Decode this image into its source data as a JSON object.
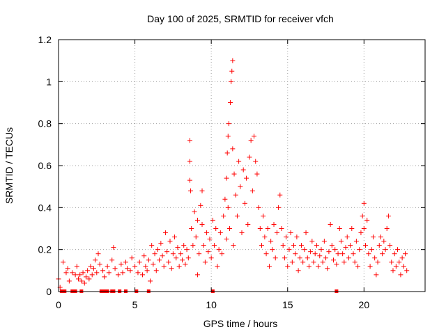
{
  "chart_data": {
    "type": "scatter",
    "title": "Day 100 of 2025, SRMTID for receiver vfch",
    "xlabel": "GPS time / hours",
    "ylabel": "SRMTID / TECUs",
    "xlim": [
      0,
      24
    ],
    "ylim": [
      0,
      1.2
    ],
    "xticks": [
      0,
      5,
      10,
      15,
      20
    ],
    "xtick_labels": [
      "0",
      "5",
      "10",
      "15",
      "20"
    ],
    "yticks": [
      0,
      0.2,
      0.4,
      0.6,
      0.8,
      1.0,
      1.2
    ],
    "ytick_labels": [
      "0",
      "0.2",
      "0.4",
      "0.6",
      "0.8",
      "1",
      "1.2"
    ],
    "grid": true,
    "marker": "+",
    "color": "#ff0000",
    "series": [
      {
        "name": "SRMTID",
        "points": [
          [
            0.0,
            0.06
          ],
          [
            0.1,
            0.02
          ],
          [
            0.3,
            0.14
          ],
          [
            0.5,
            0.09
          ],
          [
            0.6,
            0.11
          ],
          [
            0.7,
            0.05
          ],
          [
            0.9,
            0.09
          ],
          [
            1.1,
            0.08
          ],
          [
            1.2,
            0.12
          ],
          [
            1.3,
            0.06
          ],
          [
            1.4,
            0.08
          ],
          [
            1.5,
            0.05
          ],
          [
            1.6,
            0.09
          ],
          [
            1.7,
            0.04
          ],
          [
            1.8,
            0.07
          ],
          [
            1.9,
            0.1
          ],
          [
            2.0,
            0.06
          ],
          [
            2.1,
            0.12
          ],
          [
            2.2,
            0.08
          ],
          [
            2.3,
            0.11
          ],
          [
            2.4,
            0.15
          ],
          [
            2.5,
            0.09
          ],
          [
            2.6,
            0.18
          ],
          [
            2.7,
            0.13
          ],
          [
            2.9,
            0.1
          ],
          [
            3.0,
            0.07
          ],
          [
            3.2,
            0.12
          ],
          [
            3.3,
            0.09
          ],
          [
            3.5,
            0.15
          ],
          [
            3.6,
            0.21
          ],
          [
            3.7,
            0.11
          ],
          [
            3.9,
            0.08
          ],
          [
            4.1,
            0.13
          ],
          [
            4.2,
            0.09
          ],
          [
            4.4,
            0.14
          ],
          [
            4.5,
            0.11
          ],
          [
            4.7,
            0.1
          ],
          [
            4.8,
            0.16
          ],
          [
            5.0,
            0.12
          ],
          [
            5.2,
            0.09
          ],
          [
            5.3,
            0.14
          ],
          [
            5.5,
            0.08
          ],
          [
            5.6,
            0.17
          ],
          [
            5.7,
            0.12
          ],
          [
            5.8,
            0.1
          ],
          [
            5.9,
            0.15
          ],
          [
            6.0,
            0.05
          ],
          [
            6.1,
            0.22
          ],
          [
            6.2,
            0.13
          ],
          [
            6.3,
            0.18
          ],
          [
            6.4,
            0.1
          ],
          [
            6.5,
            0.2
          ],
          [
            6.6,
            0.15
          ],
          [
            6.7,
            0.23
          ],
          [
            6.8,
            0.17
          ],
          [
            6.9,
            0.12
          ],
          [
            7.0,
            0.28
          ],
          [
            7.1,
            0.19
          ],
          [
            7.2,
            0.14
          ],
          [
            7.3,
            0.24
          ],
          [
            7.4,
            0.11
          ],
          [
            7.5,
            0.18
          ],
          [
            7.6,
            0.26
          ],
          [
            7.7,
            0.16
          ],
          [
            7.8,
            0.21
          ],
          [
            7.9,
            0.12
          ],
          [
            8.0,
            0.18
          ],
          [
            8.1,
            0.15
          ],
          [
            8.2,
            0.22
          ],
          [
            8.3,
            0.13
          ],
          [
            8.4,
            0.2
          ],
          [
            8.5,
            0.16
          ],
          [
            8.6,
            0.72
          ],
          [
            8.6,
            0.62
          ],
          [
            8.6,
            0.53
          ],
          [
            8.65,
            0.48
          ],
          [
            8.7,
            0.3
          ],
          [
            8.8,
            0.22
          ],
          [
            8.9,
            0.38
          ],
          [
            9.0,
            0.26
          ],
          [
            9.1,
            0.34
          ],
          [
            9.1,
            0.08
          ],
          [
            9.2,
            0.18
          ],
          [
            9.3,
            0.41
          ],
          [
            9.4,
            0.48
          ],
          [
            9.4,
            0.32
          ],
          [
            9.5,
            0.22
          ],
          [
            9.6,
            0.14
          ],
          [
            9.7,
            0.28
          ],
          [
            9.8,
            0.19
          ],
          [
            9.9,
            0.25
          ],
          [
            10.0,
            0.16
          ],
          [
            10.1,
            0.34
          ],
          [
            10.2,
            0.22
          ],
          [
            10.3,
            0.3
          ],
          [
            10.4,
            0.12
          ],
          [
            10.5,
            0.2
          ],
          [
            10.6,
            0.28
          ],
          [
            10.7,
            0.18
          ],
          [
            10.8,
            0.36
          ],
          [
            10.9,
            0.44
          ],
          [
            11.0,
            0.54
          ],
          [
            11.0,
            0.25
          ],
          [
            11.05,
            0.66
          ],
          [
            11.1,
            0.74
          ],
          [
            11.1,
            0.4
          ],
          [
            11.15,
            0.8
          ],
          [
            11.2,
            0.3
          ],
          [
            11.25,
            0.9
          ],
          [
            11.3,
            1.0
          ],
          [
            11.35,
            1.05
          ],
          [
            11.4,
            1.1
          ],
          [
            11.4,
            0.68
          ],
          [
            11.45,
            0.22
          ],
          [
            11.5,
            0.56
          ],
          [
            11.6,
            0.46
          ],
          [
            11.7,
            0.36
          ],
          [
            11.8,
            0.62
          ],
          [
            11.9,
            0.5
          ],
          [
            12.0,
            0.28
          ],
          [
            12.1,
            0.58
          ],
          [
            12.2,
            0.42
          ],
          [
            12.3,
            0.54
          ],
          [
            12.4,
            0.32
          ],
          [
            12.5,
            0.64
          ],
          [
            12.6,
            0.72
          ],
          [
            12.7,
            0.48
          ],
          [
            12.8,
            0.74
          ],
          [
            12.9,
            0.62
          ],
          [
            13.0,
            0.56
          ],
          [
            13.1,
            0.4
          ],
          [
            13.2,
            0.3
          ],
          [
            13.3,
            0.22
          ],
          [
            13.4,
            0.36
          ],
          [
            13.5,
            0.26
          ],
          [
            13.6,
            0.18
          ],
          [
            13.7,
            0.3
          ],
          [
            13.8,
            0.12
          ],
          [
            13.9,
            0.24
          ],
          [
            14.0,
            0.2
          ],
          [
            14.1,
            0.32
          ],
          [
            14.2,
            0.16
          ],
          [
            14.3,
            0.28
          ],
          [
            14.4,
            0.4
          ],
          [
            14.5,
            0.46
          ],
          [
            14.6,
            0.3
          ],
          [
            14.7,
            0.22
          ],
          [
            14.8,
            0.16
          ],
          [
            14.9,
            0.26
          ],
          [
            15.0,
            0.12
          ],
          [
            15.1,
            0.2
          ],
          [
            15.2,
            0.28
          ],
          [
            15.3,
            0.14
          ],
          [
            15.4,
            0.22
          ],
          [
            15.5,
            0.18
          ],
          [
            15.6,
            0.26
          ],
          [
            15.7,
            0.1
          ],
          [
            15.8,
            0.16
          ],
          [
            15.9,
            0.22
          ],
          [
            16.0,
            0.14
          ],
          [
            16.1,
            0.2
          ],
          [
            16.2,
            0.28
          ],
          [
            16.3,
            0.16
          ],
          [
            16.4,
            0.12
          ],
          [
            16.5,
            0.19
          ],
          [
            16.6,
            0.24
          ],
          [
            16.7,
            0.14
          ],
          [
            16.8,
            0.18
          ],
          [
            16.9,
            0.22
          ],
          [
            17.0,
            0.12
          ],
          [
            17.1,
            0.17
          ],
          [
            17.2,
            0.2
          ],
          [
            17.3,
            0.14
          ],
          [
            17.4,
            0.24
          ],
          [
            17.5,
            0.16
          ],
          [
            17.6,
            0.11
          ],
          [
            17.7,
            0.19
          ],
          [
            17.8,
            0.32
          ],
          [
            17.9,
            0.22
          ],
          [
            18.0,
            0.15
          ],
          [
            18.1,
            0.2
          ],
          [
            18.2,
            0.13
          ],
          [
            18.3,
            0.18
          ],
          [
            18.4,
            0.3
          ],
          [
            18.5,
            0.24
          ],
          [
            18.6,
            0.18
          ],
          [
            18.7,
            0.14
          ],
          [
            18.8,
            0.21
          ],
          [
            18.9,
            0.26
          ],
          [
            19.0,
            0.16
          ],
          [
            19.1,
            0.22
          ],
          [
            19.2,
            0.3
          ],
          [
            19.3,
            0.18
          ],
          [
            19.4,
            0.14
          ],
          [
            19.5,
            0.24
          ],
          [
            19.6,
            0.12
          ],
          [
            19.7,
            0.2
          ],
          [
            19.8,
            0.28
          ],
          [
            19.9,
            0.36
          ],
          [
            20.0,
            0.42
          ],
          [
            20.0,
            0.3
          ],
          [
            20.1,
            0.22
          ],
          [
            20.2,
            0.34
          ],
          [
            20.3,
            0.18
          ],
          [
            20.4,
            0.12
          ],
          [
            20.5,
            0.2
          ],
          [
            20.6,
            0.26
          ],
          [
            20.7,
            0.16
          ],
          [
            20.8,
            0.08
          ],
          [
            20.9,
            0.14
          ],
          [
            21.0,
            0.22
          ],
          [
            21.1,
            0.26
          ],
          [
            21.2,
            0.18
          ],
          [
            21.3,
            0.24
          ],
          [
            21.4,
            0.2
          ],
          [
            21.5,
            0.3
          ],
          [
            21.6,
            0.36
          ],
          [
            21.7,
            0.22
          ],
          [
            21.8,
            0.14
          ],
          [
            21.9,
            0.1
          ],
          [
            22.0,
            0.18
          ],
          [
            22.1,
            0.12
          ],
          [
            22.2,
            0.2
          ],
          [
            22.3,
            0.14
          ],
          [
            22.4,
            0.08
          ],
          [
            22.5,
            0.16
          ],
          [
            22.6,
            0.12
          ],
          [
            22.7,
            0.18
          ],
          [
            22.8,
            0.1
          ]
        ]
      }
    ],
    "zero_markers_x": [
      0.2,
      0.4,
      0.9,
      1.1,
      1.5,
      2.8,
      3.0,
      3.2,
      3.5,
      3.6,
      4.0,
      4.4,
      5.1,
      5.9,
      10.1,
      18.2
    ]
  }
}
